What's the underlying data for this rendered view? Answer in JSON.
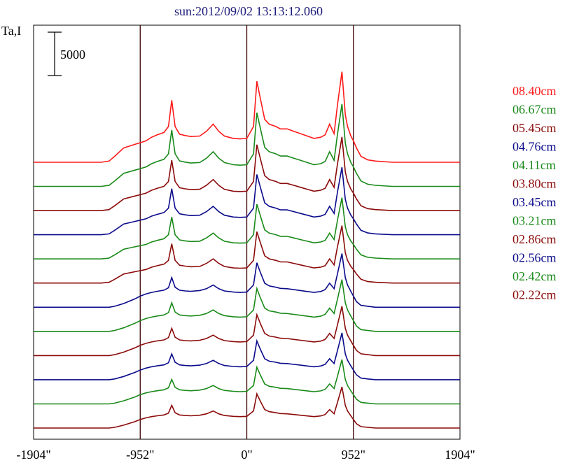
{
  "chart_data": {
    "type": "line",
    "title": "sun:2012/09/02 13:13:12.060",
    "ylabel": "Ta,I",
    "scale_bar_label": "5000",
    "scale_bar_value": 5000,
    "x_ticks": [
      -1904,
      -952,
      0,
      952,
      1904
    ],
    "x_tick_labels": [
      "-1904\"",
      "-952\"",
      "0\"",
      "952\"",
      "1904\""
    ],
    "xlim": [
      -1904,
      1904
    ],
    "vertical_lines": [
      -952,
      0,
      952
    ],
    "layout_stacked": true,
    "grid": false,
    "legend_position": "right",
    "series": [
      {
        "name": "08.40cm",
        "color": "#ff1a1a"
      },
      {
        "name": "06.67cm",
        "color": "#1a8a1a"
      },
      {
        "name": "05.45cm",
        "color": "#8b0a0a"
      },
      {
        "name": "04.76cm",
        "color": "#0a0a8b"
      },
      {
        "name": "04.11cm",
        "color": "#1a8a1a"
      },
      {
        "name": "03.80cm",
        "color": "#8b0a0a"
      },
      {
        "name": "03.45cm",
        "color": "#0a0a8b"
      },
      {
        "name": "03.21cm",
        "color": "#1a8a1a"
      },
      {
        "name": "02.86cm",
        "color": "#8b0a0a"
      },
      {
        "name": "02.56cm",
        "color": "#0a0a8b"
      },
      {
        "name": "02.42cm",
        "color": "#1a8a1a"
      },
      {
        "name": "02.22cm",
        "color": "#8b0a0a"
      }
    ],
    "profile_x": [
      -1904,
      -1300,
      -1230,
      -1180,
      -1100,
      -1000,
      -952,
      -900,
      -850,
      -800,
      -740,
      -700,
      -670,
      -640,
      -600,
      -550,
      -500,
      -420,
      -360,
      -300,
      -250,
      -200,
      -120,
      -60,
      0,
      60,
      90,
      120,
      160,
      200,
      260,
      300,
      360,
      420,
      480,
      540,
      600,
      660,
      700,
      740,
      780,
      810,
      850,
      880,
      900,
      930,
      952,
      980,
      1020,
      1080,
      1150,
      1300,
      1904
    ],
    "profile_templates": {
      "A": [
        0,
        0,
        5,
        25,
        60,
        75,
        82,
        90,
        105,
        115,
        125,
        150,
        260,
        150,
        118,
        112,
        108,
        110,
        130,
        160,
        130,
        110,
        100,
        98,
        100,
        150,
        340,
        270,
        180,
        160,
        150,
        140,
        140,
        130,
        120,
        110,
        100,
        105,
        115,
        160,
        120,
        240,
        380,
        200,
        150,
        110,
        90,
        60,
        25,
        10,
        5,
        0,
        0
      ],
      "B": [
        0,
        0,
        0,
        5,
        20,
        45,
        60,
        72,
        80,
        86,
        92,
        105,
        160,
        108,
        92,
        88,
        86,
        90,
        100,
        120,
        100,
        88,
        82,
        80,
        82,
        120,
        240,
        190,
        130,
        115,
        108,
        102,
        100,
        95,
        90,
        85,
        80,
        85,
        95,
        130,
        100,
        180,
        290,
        160,
        120,
        85,
        60,
        30,
        10,
        5,
        0,
        0,
        0
      ]
    },
    "traces": [
      {
        "name": "08.40cm",
        "template": "A",
        "peak_amp": 14500
      },
      {
        "name": "06.67cm",
        "template": "A",
        "peak_amp": 13200
      },
      {
        "name": "05.45cm",
        "template": "A",
        "peak_amp": 11800
      },
      {
        "name": "04.76cm",
        "template": "A",
        "peak_amp": 10800
      },
      {
        "name": "04.11cm",
        "template": "A",
        "peak_amp": 9800
      },
      {
        "name": "03.80cm",
        "template": "A",
        "peak_amp": 9200
      },
      {
        "name": "03.45cm",
        "template": "B",
        "peak_amp": 8600
      },
      {
        "name": "03.21cm",
        "template": "B",
        "peak_amp": 8300
      },
      {
        "name": "02.86cm",
        "template": "B",
        "peak_amp": 7900
      },
      {
        "name": "02.56cm",
        "template": "B",
        "peak_amp": 7500
      },
      {
        "name": "02.42cm",
        "template": "B",
        "peak_amp": 7100
      },
      {
        "name": "02.22cm",
        "template": "B",
        "peak_amp": 6600
      }
    ]
  }
}
